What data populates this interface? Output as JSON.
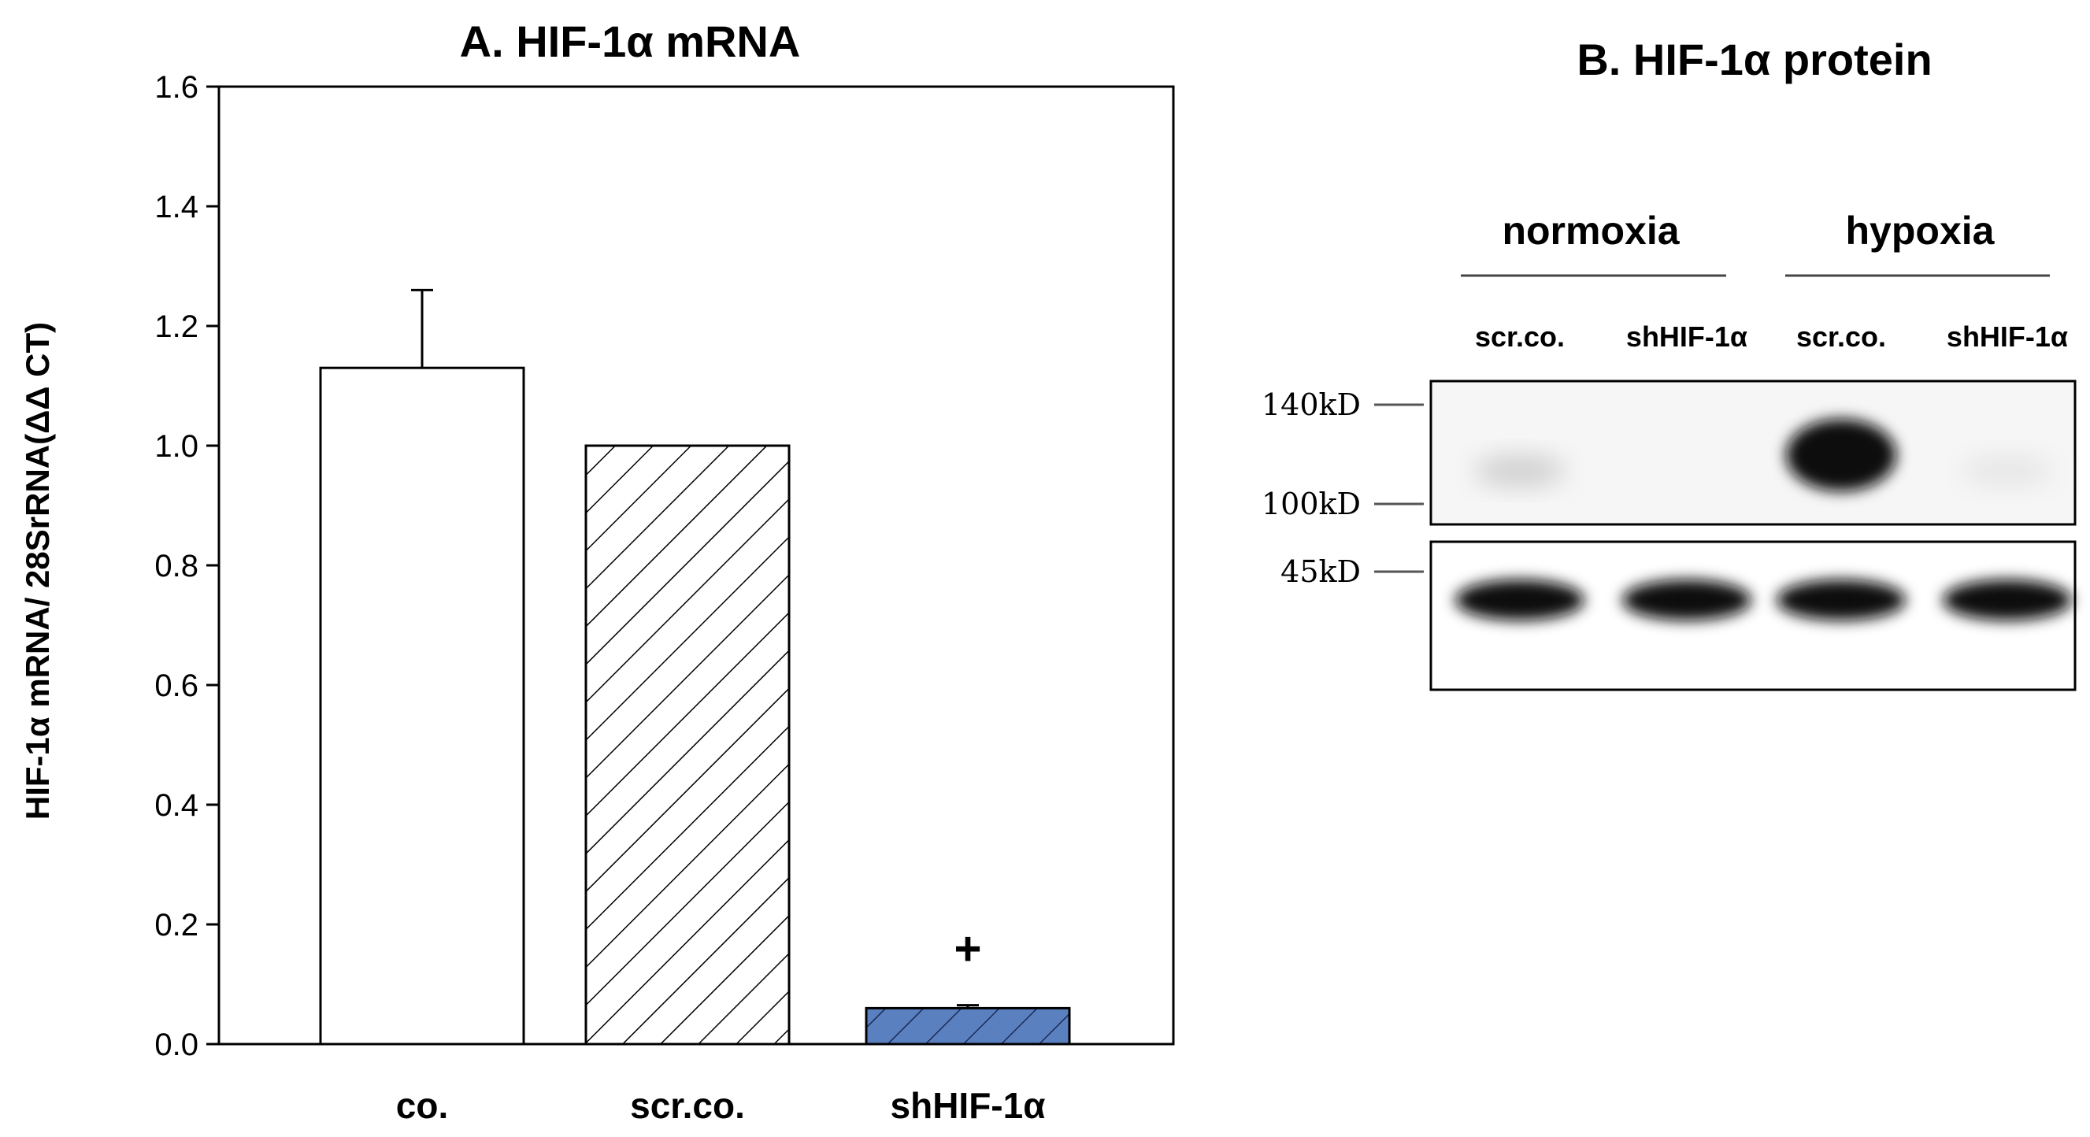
{
  "chart_data": [
    {
      "type": "bar",
      "title": "A. HIF-1α mRNA",
      "ylabel": "HIF-1α mRNA/ 28SrRNA(ΔΔ CT)",
      "xlabel": "",
      "ylim": [
        0,
        1.6
      ],
      "yticks": [
        "0.0",
        "0.2",
        "0.4",
        "0.6",
        "0.8",
        "1.0",
        "1.2",
        "1.4",
        "1.6"
      ],
      "categories": [
        "co.",
        "scr.co.",
        "shHIF-1α"
      ],
      "values": [
        1.13,
        1.0,
        0.06
      ],
      "errors": [
        0.13,
        0.0,
        0.005
      ],
      "fills": [
        "white",
        "diagonal-hatch",
        "blue-diagonal-hatch"
      ],
      "annotations": [
        {
          "category": "shHIF-1α",
          "text": "+"
        }
      ],
      "colors": {
        "bar_outline": "#000000",
        "blue_bar": "#5b80c0"
      }
    },
    {
      "type": "blot",
      "title": "B. HIF-1α protein",
      "groups": [
        "normoxia",
        "hypoxia"
      ],
      "lanes": [
        "scr.co.",
        "shHIF-1α",
        "scr.co.",
        "shHIF-1α"
      ],
      "markers": [
        "140kD",
        "100kD",
        "45kD"
      ],
      "hif_band_intensity": [
        0.12,
        0.0,
        0.95,
        0.02
      ],
      "loading_band_intensity": [
        0.95,
        0.9,
        0.9,
        0.92
      ]
    }
  ]
}
